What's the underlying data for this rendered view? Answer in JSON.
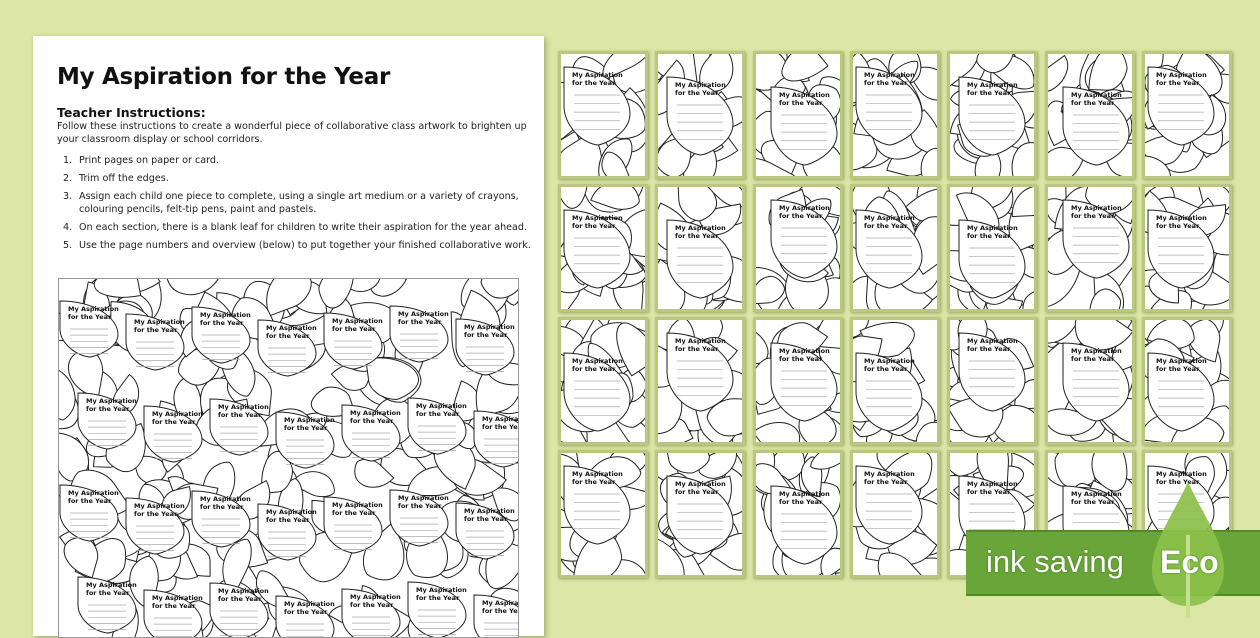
{
  "sheet": {
    "title": "My Aspiration for the Year",
    "subtitle": "Teacher Instructions:",
    "intro": "Follow these instructions to create a wonderful piece of collaborative class artwork to brighten up your classroom display or school corridors.",
    "steps": [
      {
        "n": "1.",
        "text": "Print pages on paper or card."
      },
      {
        "n": "2.",
        "text": "Trim off the edges."
      },
      {
        "n": "3.",
        "text": "Assign each child one piece to complete, using a single art medium or a variety of crayons, colouring pencils, felt-tip pens, paint and pastels."
      },
      {
        "n": "4.",
        "text": "On each section, there is a blank leaf for children to write their aspiration for the year ahead."
      },
      {
        "n": "5.",
        "text": "Use the page numbers and overview (below) to put together your finished collaborative work."
      }
    ]
  },
  "leaf_label": [
    "My Aspiration",
    "for the Year"
  ],
  "badge": {
    "text": "ink saving",
    "eco": "Eco",
    "color": "#6aa53a",
    "drop_color": "#8cc04a"
  },
  "background_color": "#dce7a7"
}
